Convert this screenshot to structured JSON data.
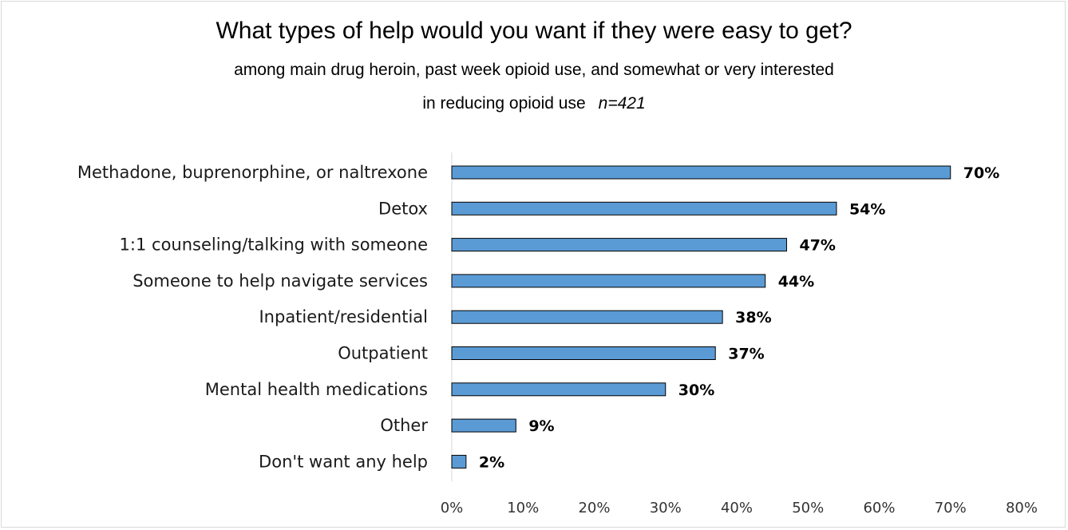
{
  "chart_data": {
    "type": "bar",
    "orientation": "horizontal",
    "title": "What types of help would you want if they were easy to get?",
    "subtitle_line1": "among main drug heroin, past week opioid use, and somewhat or very interested",
    "subtitle_line2": "in reducing opioid use",
    "sample_size": "n=421",
    "categories": [
      "Methadone, buprenorphine, or naltrexone",
      "Detox",
      "1:1 counseling/talking with someone",
      "Someone to help navigate services",
      "Inpatient/residential",
      "Outpatient",
      "Mental health medications",
      "Other",
      "Don't want any help"
    ],
    "values": [
      70,
      54,
      47,
      44,
      38,
      37,
      30,
      9,
      2
    ],
    "value_labels": [
      "70%",
      "54%",
      "47%",
      "44%",
      "38%",
      "37%",
      "30%",
      "9%",
      "2%"
    ],
    "xlim": [
      0,
      80
    ],
    "x_ticks": [
      "0%",
      "10%",
      "20%",
      "30%",
      "40%",
      "50%",
      "60%",
      "70%",
      "80%"
    ],
    "grid": false,
    "legend": "none",
    "bar_color": "#5b9bd5",
    "bar_border_color": "#000000"
  }
}
